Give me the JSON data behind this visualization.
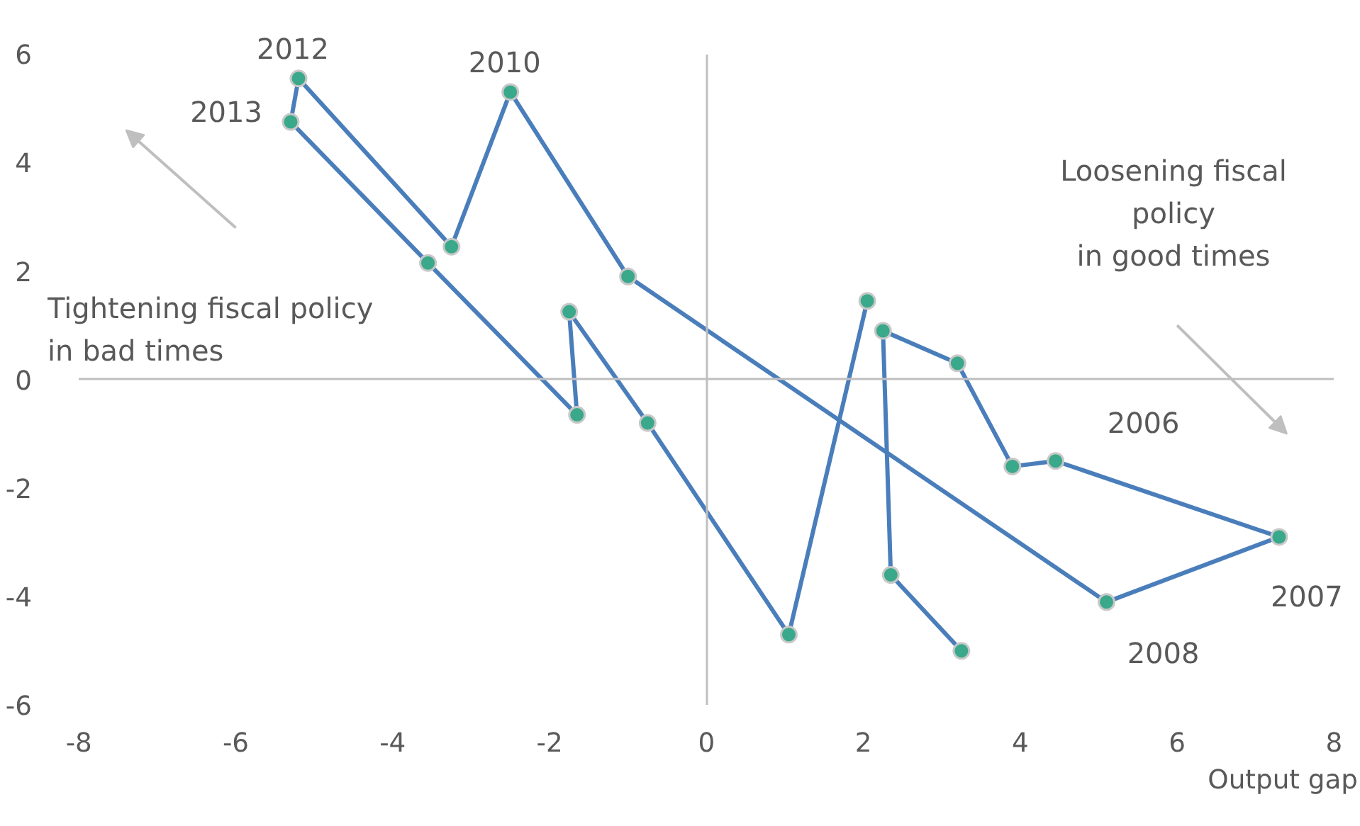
{
  "chart_data": {
    "type": "line",
    "xlabel": "Output gap",
    "series": [
      {
        "color": "#4a7ebb",
        "x": [
          3.25,
          2.35,
          2.25,
          3.2,
          3.9,
          4.45,
          7.3,
          5.1,
          -1.0,
          -2.5,
          -3.25,
          -5.2,
          -5.3,
          -3.55,
          -1.65,
          -1.75,
          -0.75,
          1.05,
          2.05
        ],
        "values": [
          -5.0,
          -3.6,
          0.9,
          0.3,
          -1.6,
          -1.5,
          -2.9,
          -4.1,
          1.9,
          5.3,
          2.45,
          5.55,
          4.75,
          2.15,
          -0.65,
          1.25,
          -0.8,
          -4.7,
          1.45
        ]
      }
    ],
    "marker": "circle",
    "xlim": [
      -8,
      8
    ],
    "ylim": [
      -6,
      6
    ],
    "xticks": [
      -8,
      -6,
      -4,
      -2,
      0,
      2,
      4,
      6,
      8
    ],
    "yticks": [
      -6,
      -4,
      -2,
      0,
      2,
      4,
      6
    ],
    "annotations": [
      {
        "text": "2012",
        "x": -5.2,
        "y": 5.55
      },
      {
        "text": "2010",
        "x": -2.5,
        "y": 5.3
      },
      {
        "text": "2013",
        "x": -5.3,
        "y": 4.75
      },
      {
        "text": "2006",
        "x": 4.45,
        "y": -1.5
      },
      {
        "text": "2007",
        "x": 7.3,
        "y": -2.9
      },
      {
        "text": "2008",
        "x": 5.1,
        "y": -4.1
      },
      "Tightening fiscal policy\nin bad times",
      "Loosening fiscal\npolicy\nin good times"
    ]
  }
}
